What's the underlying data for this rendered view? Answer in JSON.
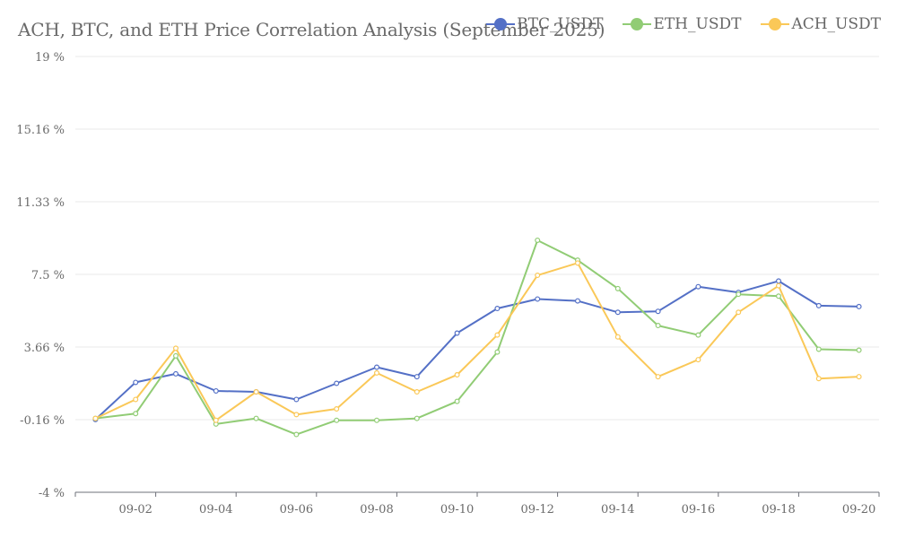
{
  "chart_data": {
    "type": "line",
    "title": "ACH, BTC, and ETH Price Correlation Analysis (September 2025)",
    "xlabel": "",
    "ylabel": "",
    "x": [
      "09-01",
      "09-02",
      "09-03",
      "09-04",
      "09-05",
      "09-06",
      "09-07",
      "09-08",
      "09-09",
      "09-10",
      "09-11",
      "09-12",
      "09-13",
      "09-14",
      "09-15",
      "09-16",
      "09-17",
      "09-18",
      "09-19",
      "09-20"
    ],
    "x_tick_labels": [
      "09-02",
      "09-04",
      "09-06",
      "09-08",
      "09-10",
      "09-12",
      "09-14",
      "09-16",
      "09-18",
      "09-20"
    ],
    "y_tick_labels": [
      "19 %",
      "15.16 %",
      "11.33 %",
      "7.5 %",
      "3.66 %",
      "-0.16 %",
      "-4 %"
    ],
    "ylim": [
      -4,
      19
    ],
    "grid": true,
    "legend": "top-right",
    "series": [
      {
        "name": "BTC_USDT",
        "color": "#5470c6",
        "values": [
          -0.16,
          1.8,
          2.25,
          1.35,
          1.3,
          0.9,
          1.75,
          2.6,
          2.1,
          4.4,
          5.7,
          6.2,
          6.1,
          5.5,
          5.55,
          6.85,
          6.55,
          7.15,
          5.85,
          5.8
        ]
      },
      {
        "name": "ETH_USDT",
        "color": "#91cc75",
        "values": [
          -0.1,
          0.15,
          3.2,
          -0.4,
          -0.1,
          -0.95,
          -0.2,
          -0.2,
          -0.1,
          0.8,
          3.4,
          9.3,
          8.25,
          6.75,
          4.8,
          4.3,
          6.45,
          6.35,
          3.55,
          3.5
        ]
      },
      {
        "name": "ACH_USDT",
        "color": "#fac858",
        "values": [
          -0.1,
          0.9,
          3.6,
          -0.2,
          1.3,
          0.1,
          0.4,
          2.3,
          1.3,
          2.2,
          4.3,
          7.45,
          8.1,
          4.2,
          2.1,
          3.0,
          5.5,
          6.9,
          2.0,
          2.1
        ]
      }
    ]
  }
}
